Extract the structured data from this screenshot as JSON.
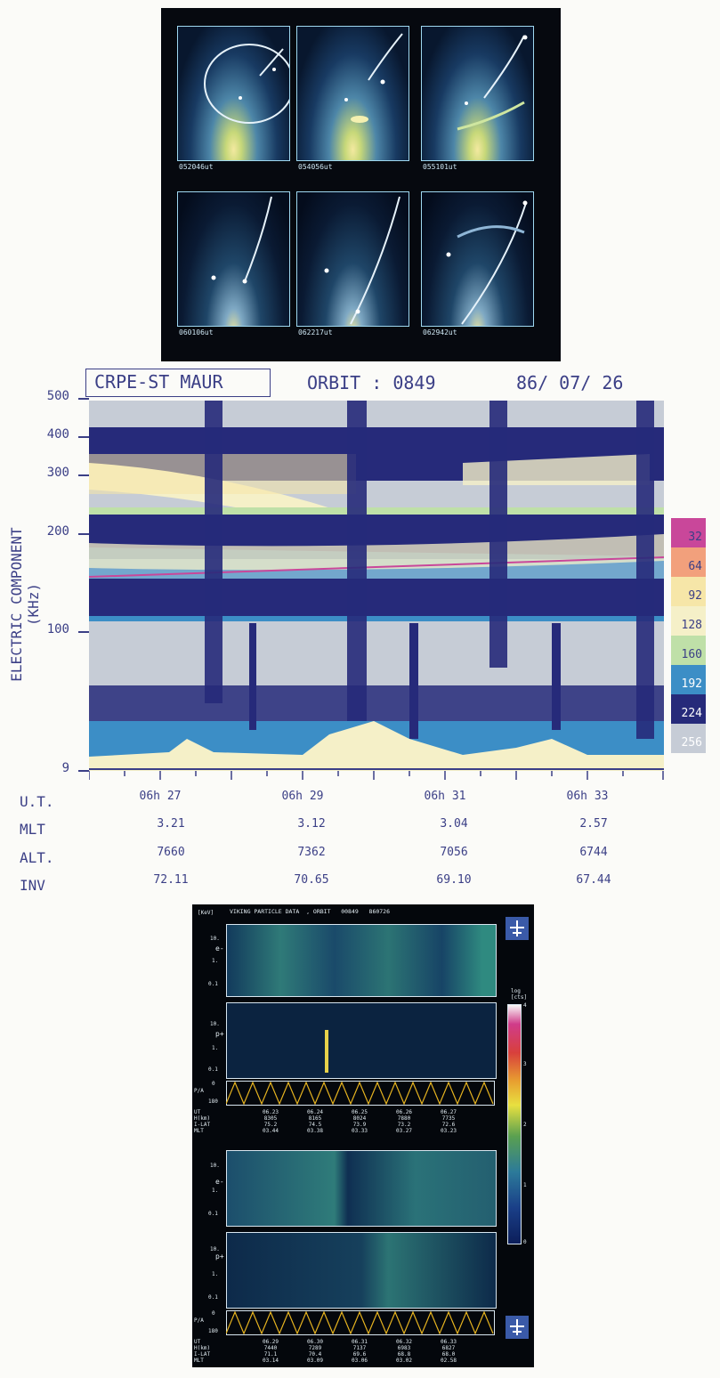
{
  "aurora_panel": {
    "frame_labels": [
      "052046ut",
      "054056ut",
      "055101ut",
      "060106ut",
      "062217ut",
      "062942ut"
    ]
  },
  "spectrogram": {
    "title_box": "CRPE-ST MAUR",
    "orbit_label": "ORBIT : 0849",
    "date": "86/ 07/ 26",
    "ylabel": "ELECTRIC COMPONENT (KHz)",
    "yticks": [
      "500",
      "400",
      "300",
      "200",
      "100",
      "9"
    ],
    "legend": [
      {
        "label": "32",
        "color": "#c9479a"
      },
      {
        "label": "64",
        "color": "#f2a07c"
      },
      {
        "label": "92",
        "color": "#f6e6a8"
      },
      {
        "label": "128",
        "color": "#f5f0c8"
      },
      {
        "label": "160",
        "color": "#bfe0a8"
      },
      {
        "label": "192",
        "color": "#3c8ec6"
      },
      {
        "label": "224",
        "color": "#262a7a"
      },
      {
        "label": "256",
        "color": "#c6ccd6"
      }
    ],
    "rows": [
      {
        "label": "U.T.",
        "values": [
          "06h 27",
          "06h 29",
          "06h 31",
          "06h 33"
        ]
      },
      {
        "label": "MLT",
        "values": [
          "3.21",
          "3.12",
          "3.04",
          "2.57"
        ]
      },
      {
        "label": "ALT.",
        "values": [
          "7660",
          "7362",
          "7056",
          "6744"
        ]
      },
      {
        "label": "INV",
        "values": [
          "72.11",
          "70.65",
          "69.10",
          "67.44"
        ]
      }
    ]
  },
  "particle_panel": {
    "unit": "[KeV]",
    "title": "VIKING PARTICLE DATA  , ORBIT   00849   860726",
    "colorbar_label": "log\n[cts]",
    "colorbar_ticks": [
      "4",
      "3",
      "2",
      "1",
      "0"
    ],
    "species": [
      "e-",
      "p+",
      "e-",
      "p+"
    ],
    "energy_ticks": [
      "10.",
      "1.",
      "0.1"
    ],
    "pa_label": "P/A",
    "pa_ticks": [
      "0",
      "180"
    ],
    "footer_labels": "UT\nH(km)\nI-LAT\nMLT",
    "footer1": [
      "06.23\n8305\n75.2\n03.44",
      "06.24\n8165\n74.5\n03.38",
      "06.25\n8024\n73.9\n03.33",
      "06.26\n7880\n73.2\n03.27",
      "06.27\n7735\n72.6\n03.23"
    ],
    "footer2": [
      "06.29\n7440\n71.1\n03.14",
      "06.30\n7289\n70.4\n03.09",
      "06.31\n7137\n69.6\n03.06",
      "06.32\n6983\n68.8\n03.02",
      "06.33\n6827\n68.0\n02.58"
    ]
  }
}
